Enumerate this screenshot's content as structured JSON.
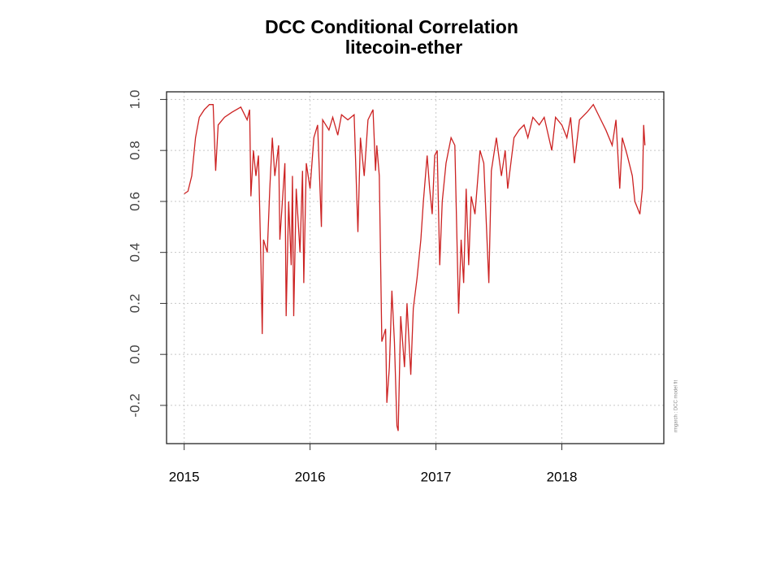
{
  "chart_data": {
    "type": "line",
    "title": "DCC Conditional Correlation",
    "subtitle": "litecoin-ether",
    "annotation": "rmgarch : DCC model fit",
    "x": [
      2015.0,
      2015.03,
      2015.06,
      2015.09,
      2015.12,
      2015.16,
      2015.2,
      2015.23,
      2015.25,
      2015.27,
      2015.32,
      2015.38,
      2015.45,
      2015.5,
      2015.52,
      2015.53,
      2015.55,
      2015.57,
      2015.59,
      2015.61,
      2015.62,
      2015.63,
      2015.66,
      2015.68,
      2015.7,
      2015.72,
      2015.75,
      2015.76,
      2015.78,
      2015.8,
      2015.81,
      2015.83,
      2015.85,
      2015.86,
      2015.87,
      2015.89,
      2015.92,
      2015.94,
      2015.95,
      2015.97,
      2016.0,
      2016.03,
      2016.06,
      2016.09,
      2016.1,
      2016.15,
      2016.18,
      2016.22,
      2016.25,
      2016.3,
      2016.35,
      2016.38,
      2016.4,
      2016.43,
      2016.46,
      2016.5,
      2016.52,
      2016.53,
      2016.55,
      2016.57,
      2016.6,
      2016.61,
      2016.63,
      2016.65,
      2016.67,
      2016.69,
      2016.7,
      2016.72,
      2016.75,
      2016.77,
      2016.8,
      2016.82,
      2016.85,
      2016.88,
      2016.9,
      2016.93,
      2016.95,
      2016.97,
      2016.99,
      2017.01,
      2017.03,
      2017.05,
      2017.08,
      2017.12,
      2017.15,
      2017.18,
      2017.2,
      2017.22,
      2017.24,
      2017.26,
      2017.28,
      2017.31,
      2017.35,
      2017.38,
      2017.42,
      2017.44,
      2017.48,
      2017.52,
      2017.55,
      2017.57,
      2017.62,
      2017.66,
      2017.7,
      2017.73,
      2017.77,
      2017.82,
      2017.86,
      2017.92,
      2017.95,
      2018.0,
      2018.04,
      2018.07,
      2018.1,
      2018.14,
      2018.2,
      2018.25,
      2018.3,
      2018.35,
      2018.4,
      2018.43,
      2018.46,
      2018.48,
      2018.52,
      2018.56,
      2018.58,
      2018.62,
      2018.64,
      2018.65,
      2018.66
    ],
    "series": [
      {
        "name": "litecoin-ether",
        "color": "#cc2222",
        "values": [
          0.63,
          0.64,
          0.7,
          0.85,
          0.93,
          0.96,
          0.98,
          0.98,
          0.72,
          0.9,
          0.93,
          0.95,
          0.97,
          0.92,
          0.96,
          0.62,
          0.8,
          0.7,
          0.78,
          0.35,
          0.08,
          0.45,
          0.4,
          0.65,
          0.85,
          0.7,
          0.82,
          0.45,
          0.6,
          0.75,
          0.15,
          0.6,
          0.35,
          0.7,
          0.15,
          0.65,
          0.4,
          0.72,
          0.28,
          0.75,
          0.65,
          0.85,
          0.9,
          0.5,
          0.92,
          0.88,
          0.93,
          0.86,
          0.94,
          0.92,
          0.94,
          0.48,
          0.85,
          0.7,
          0.92,
          0.96,
          0.72,
          0.82,
          0.7,
          0.05,
          0.1,
          -0.19,
          -0.05,
          0.25,
          0.05,
          -0.28,
          -0.3,
          0.15,
          -0.05,
          0.2,
          -0.08,
          0.18,
          0.3,
          0.45,
          0.6,
          0.78,
          0.65,
          0.55,
          0.78,
          0.8,
          0.35,
          0.6,
          0.75,
          0.85,
          0.82,
          0.16,
          0.45,
          0.28,
          0.65,
          0.35,
          0.62,
          0.55,
          0.8,
          0.75,
          0.28,
          0.72,
          0.85,
          0.7,
          0.8,
          0.65,
          0.85,
          0.88,
          0.9,
          0.85,
          0.93,
          0.9,
          0.93,
          0.8,
          0.93,
          0.9,
          0.85,
          0.93,
          0.75,
          0.92,
          0.95,
          0.98,
          0.93,
          0.88,
          0.82,
          0.92,
          0.65,
          0.85,
          0.78,
          0.7,
          0.6,
          0.55,
          0.65,
          0.9,
          0.82
        ]
      }
    ],
    "xlim": [
      2014.86,
      2018.81
    ],
    "xticks": [
      2015,
      2016,
      2017,
      2018
    ],
    "ylim": [
      -0.35,
      1.03
    ],
    "yticks": [
      -0.2,
      {
        "value": 0,
        "label": "0.0"
      },
      0.2,
      0.4,
      0.6,
      0.8,
      {
        "value": 1,
        "label": "1.0"
      }
    ],
    "grid": true
  }
}
